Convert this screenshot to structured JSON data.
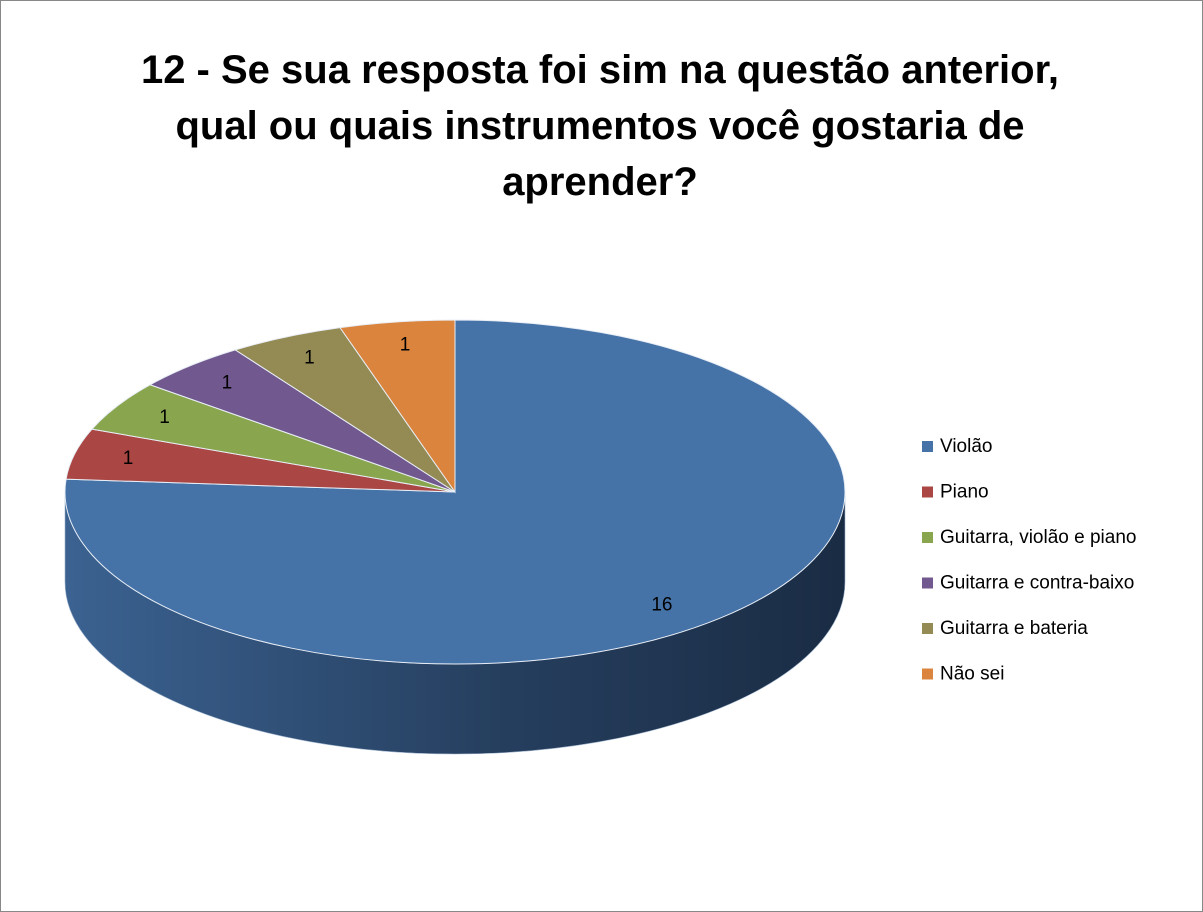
{
  "chart_data": {
    "type": "pie3d",
    "title": "12 - Se sua resposta foi sim na questão anterior, qual ou quais instrumentos você gostaria de aprender?",
    "categories": [
      "Violão",
      "Piano",
      "Guitarra, violão e piano",
      "Guitarra e contra-baixo",
      "Guitarra e bateria",
      "Não sei"
    ],
    "values": [
      16,
      1,
      1,
      1,
      1,
      1
    ],
    "colors": [
      "#4572a7",
      "#aa4643",
      "#89a54e",
      "#71588f",
      "#948a54",
      "#db843d"
    ],
    "legend": "right"
  }
}
